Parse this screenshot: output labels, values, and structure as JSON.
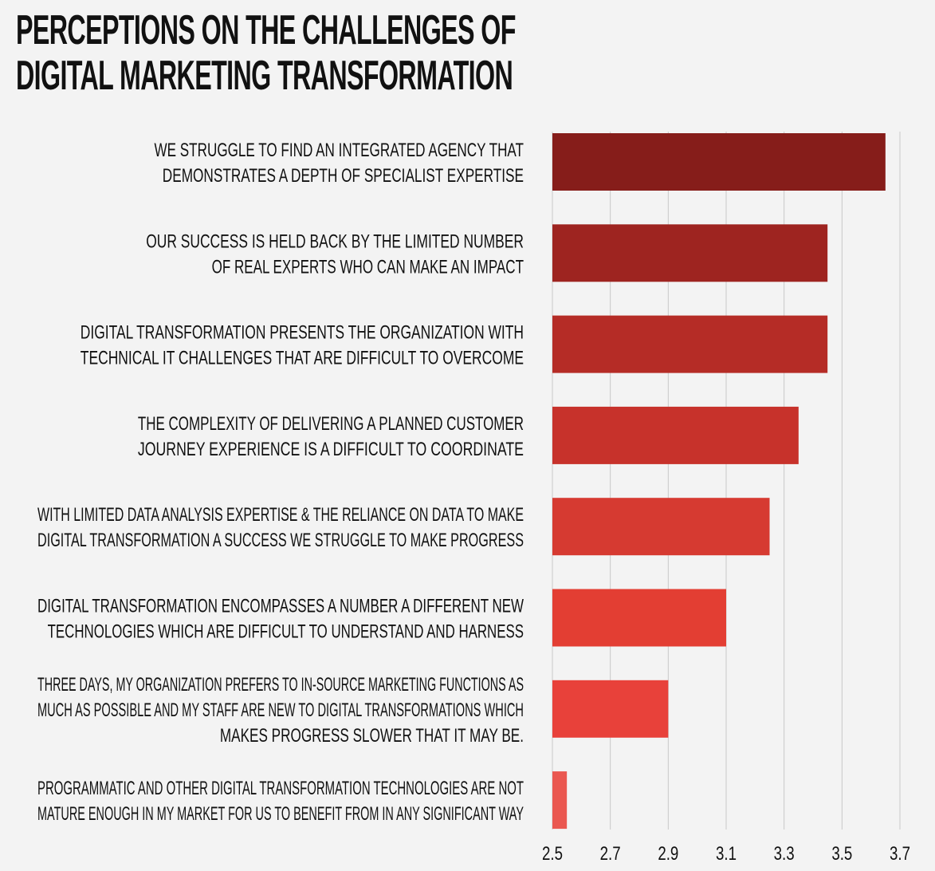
{
  "title_lines": [
    "PERCEPTIONS ON THE CHALLENGES OF",
    "DIGITAL MARKETING TRANSFORMATION"
  ],
  "chart_data": {
    "type": "bar",
    "orientation": "horizontal",
    "title": "PERCEPTIONS ON THE CHALLENGES OF DIGITAL MARKETING TRANSFORMATION",
    "categories": [
      [
        "WE STRUGGLE TO FIND AN INTEGRATED AGENCY THAT",
        "DEMONSTRATES A DEPTH OF SPECIALIST EXPERTISE"
      ],
      [
        "OUR SUCCESS IS HELD BACK BY THE LIMITED NUMBER",
        "OF REAL EXPERTS WHO CAN MAKE AN IMPACT"
      ],
      [
        "DIGITAL TRANSFORMATION PRESENTS THE ORGANIZATION  WITH",
        "TECHNICAL IT CHALLENGES THAT ARE DIFFICULT TO OVERCOME"
      ],
      [
        "THE COMPLEXITY OF DELIVERING A PLANNED CUSTOMER",
        "JOURNEY EXPERIENCE IS A DIFFICULT TO COORDINATE"
      ],
      [
        "WITH LIMITED DATA ANALYSIS EXPERTISE & THE RELIANCE ON DATA TO MAKE",
        "DIGITAL TRANSFORMATION A SUCCESS WE STRUGGLE TO MAKE PROGRESS"
      ],
      [
        "DIGITAL TRANSFORMATION ENCOMPASSES A  NUMBER A DIFFERENT NEW",
        "TECHNOLOGIES WHICH ARE DIFFICULT TO UNDERSTAND AND HARNESS"
      ],
      [
        "THREE DAYS, MY ORGANIZATION PREFERS TO IN-SOURCE MARKETING FUNCTIONS AS",
        "MUCH AS POSSIBLE AND MY STAFF ARE NEW TO DIGITAL TRANSFORMATIONS WHICH",
        "MAKES PROGRESS SLOWER THAT IT MAY BE."
      ],
      [
        "PROGRAMMATIC AND OTHER DIGITAL TRANSFORMATION TECHNOLOGIES ARE NOT",
        "MATURE ENOUGH IN MY MARKET FOR US TO BENEFIT FROM IN ANY SIGNIFICANT WAY"
      ]
    ],
    "values": [
      3.65,
      3.45,
      3.45,
      3.35,
      3.25,
      3.1,
      2.9,
      2.55
    ],
    "bar_colors": [
      "#861d1a",
      "#9e2420",
      "#b52c26",
      "#c7322b",
      "#d63a31",
      "#e33e33",
      "#e8413a",
      "#ea5750"
    ],
    "xlim": [
      2.5,
      3.7
    ],
    "ticks": [
      "2.5",
      "2.7",
      "2.9",
      "3.1",
      "3.3",
      "3.5",
      "3.7"
    ],
    "grid": true,
    "xlabel": "",
    "ylabel": ""
  }
}
